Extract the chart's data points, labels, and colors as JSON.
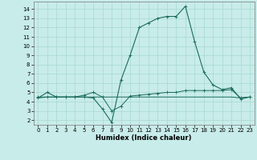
{
  "title": "",
  "xlabel": "Humidex (Indice chaleur)",
  "ylabel": "",
  "bg_color": "#c8ece9",
  "line_color": "#1a6b5a",
  "grid_color": "#a8d8d0",
  "xlim": [
    -0.5,
    23.5
  ],
  "ylim": [
    1.5,
    14.8
  ],
  "yticks": [
    2,
    3,
    4,
    5,
    6,
    7,
    8,
    9,
    10,
    11,
    12,
    13,
    14
  ],
  "xticks": [
    0,
    1,
    2,
    3,
    4,
    5,
    6,
    7,
    8,
    9,
    10,
    11,
    12,
    13,
    14,
    15,
    16,
    17,
    18,
    19,
    20,
    21,
    22,
    23
  ],
  "line1_x": [
    0,
    1,
    2,
    3,
    4,
    5,
    6,
    7,
    8,
    9,
    10,
    11,
    12,
    13,
    14,
    15,
    16,
    17,
    18,
    19,
    20,
    21,
    22,
    23
  ],
  "line1_y": [
    4.4,
    5.0,
    4.5,
    4.5,
    4.5,
    4.5,
    4.4,
    3.2,
    1.75,
    6.3,
    9.0,
    12.0,
    12.5,
    13.0,
    13.2,
    13.2,
    14.3,
    10.5,
    7.2,
    5.8,
    5.3,
    5.5,
    4.3,
    4.5
  ],
  "line2_x": [
    0,
    1,
    2,
    3,
    4,
    5,
    6,
    7,
    8,
    9,
    10,
    11,
    12,
    13,
    14,
    15,
    16,
    17,
    18,
    19,
    20,
    21,
    22,
    23
  ],
  "line2_y": [
    4.5,
    4.5,
    4.5,
    4.5,
    4.5,
    4.7,
    5.0,
    4.5,
    3.0,
    3.5,
    4.6,
    4.7,
    4.8,
    4.9,
    5.0,
    5.0,
    5.2,
    5.2,
    5.2,
    5.2,
    5.2,
    5.3,
    4.4,
    4.5
  ],
  "line3_x": [
    0,
    1,
    2,
    3,
    4,
    5,
    6,
    7,
    8,
    9,
    10,
    11,
    12,
    13,
    14,
    15,
    16,
    17,
    18,
    19,
    20,
    21,
    22,
    23
  ],
  "line3_y": [
    4.4,
    4.5,
    4.5,
    4.5,
    4.5,
    4.5,
    4.5,
    4.5,
    4.5,
    4.5,
    4.5,
    4.5,
    4.5,
    4.5,
    4.5,
    4.5,
    4.5,
    4.5,
    4.5,
    4.5,
    4.5,
    4.5,
    4.4,
    4.5
  ],
  "xlabel_fontsize": 6,
  "tick_fontsize": 5
}
